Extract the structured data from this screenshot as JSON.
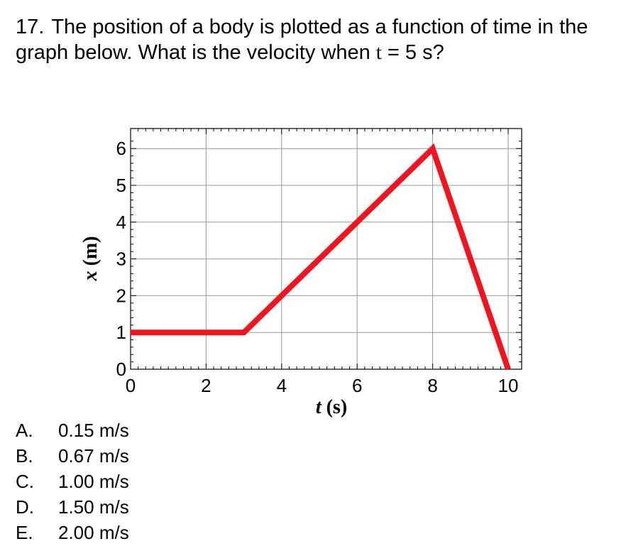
{
  "question": {
    "number": "17.",
    "text_before": "The position of a body is plotted as a function of time in the graph below.  What is the velocity when",
    "variable": "t",
    "text_after": "= 5 s?"
  },
  "chart_data": {
    "type": "line",
    "xlabel": "t",
    "xunit": "(s)",
    "ylabel": "x",
    "yunit": "(m)",
    "xlim": [
      0,
      10
    ],
    "ylim": [
      0,
      6.2
    ],
    "xticks": [
      0,
      2,
      4,
      6,
      8,
      10
    ],
    "yticks": [
      0,
      1,
      2,
      3,
      4,
      5,
      6
    ],
    "grid": true,
    "line_color": "#f0141e",
    "series": [
      {
        "x": [
          0,
          3,
          8,
          10
        ],
        "y": [
          1,
          1,
          6,
          0
        ]
      }
    ]
  },
  "choices": [
    {
      "letter": "A.",
      "text": "0.15 m/s"
    },
    {
      "letter": "B.",
      "text": "0.67 m/s"
    },
    {
      "letter": "C.",
      "text": "1.00 m/s"
    },
    {
      "letter": "D.",
      "text": "1.50 m/s"
    },
    {
      "letter": "E.",
      "text": "2.00 m/s"
    }
  ]
}
